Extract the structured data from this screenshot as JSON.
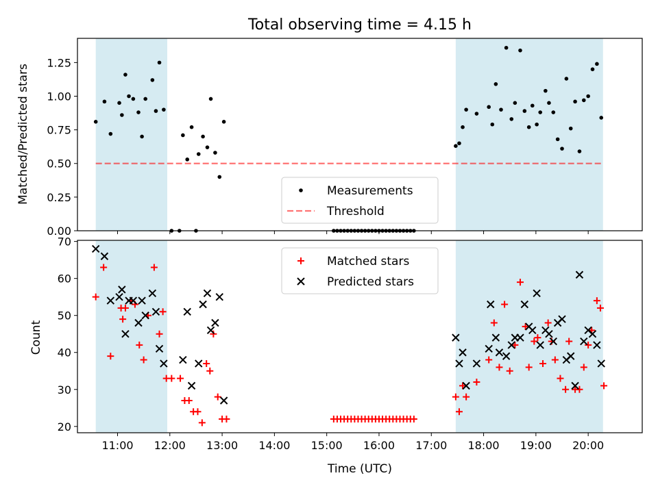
{
  "title": "Total observing time = 4.15 h",
  "colors": {
    "shade": "#add8e6",
    "threshold": "#ff0000",
    "matched": "#ff0000",
    "predicted": "#000000",
    "measurement": "#000000"
  },
  "chart_data": [
    {
      "type": "scatter",
      "ylabel": "Matched/Predicted stars",
      "ylim": [
        0,
        1.43
      ],
      "xlim": [
        "10:14",
        "21:02"
      ],
      "x_ticks": [
        "11:00",
        "12:00",
        "13:00",
        "14:00",
        "15:00",
        "16:00",
        "17:00",
        "18:00",
        "19:00",
        "20:00"
      ],
      "y_ticks": [
        "0.00",
        "0.25",
        "0.50",
        "0.75",
        "1.00",
        "1.25"
      ],
      "threshold": 0.5,
      "shaded_intervals": [
        [
          "10:35",
          "11:57"
        ],
        [
          "17:28",
          "20:17"
        ]
      ],
      "legend": [
        "Measurements",
        "Threshold"
      ],
      "legend_position": "lower center",
      "series": [
        {
          "name": "Measurements",
          "points": [
            [
              "10:35",
              0.81
            ],
            [
              "10:45",
              0.96
            ],
            [
              "10:52",
              0.72
            ],
            [
              "11:02",
              0.95
            ],
            [
              "11:05",
              0.86
            ],
            [
              "11:09",
              1.16
            ],
            [
              "11:13",
              1.0
            ],
            [
              "11:18",
              0.98
            ],
            [
              "11:24",
              0.88
            ],
            [
              "11:28",
              0.7
            ],
            [
              "11:32",
              0.98
            ],
            [
              "11:40",
              1.12
            ],
            [
              "11:44",
              0.89
            ],
            [
              "11:48",
              1.25
            ],
            [
              "11:53",
              0.9
            ],
            [
              "12:02",
              0.0
            ],
            [
              "12:11",
              0.0
            ],
            [
              "12:15",
              0.71
            ],
            [
              "12:20",
              0.53
            ],
            [
              "12:25",
              0.77
            ],
            [
              "12:30",
              0.0
            ],
            [
              "12:33",
              0.57
            ],
            [
              "12:38",
              0.7
            ],
            [
              "12:43",
              0.62
            ],
            [
              "12:47",
              0.98
            ],
            [
              "12:52",
              0.58
            ],
            [
              "12:57",
              0.4
            ],
            [
              "13:02",
              0.81
            ],
            [
              "15:08",
              0.0
            ],
            [
              "15:12",
              0.0
            ],
            [
              "15:16",
              0.0
            ],
            [
              "15:20",
              0.0
            ],
            [
              "15:24",
              0.0
            ],
            [
              "15:28",
              0.0
            ],
            [
              "15:32",
              0.0
            ],
            [
              "15:36",
              0.0
            ],
            [
              "15:40",
              0.0
            ],
            [
              "15:44",
              0.0
            ],
            [
              "15:48",
              0.0
            ],
            [
              "15:52",
              0.0
            ],
            [
              "15:56",
              0.0
            ],
            [
              "16:00",
              0.0
            ],
            [
              "16:04",
              0.0
            ],
            [
              "16:08",
              0.0
            ],
            [
              "16:12",
              0.0
            ],
            [
              "16:16",
              0.0
            ],
            [
              "16:20",
              0.0
            ],
            [
              "16:24",
              0.0
            ],
            [
              "16:28",
              0.0
            ],
            [
              "16:32",
              0.0
            ],
            [
              "16:36",
              0.0
            ],
            [
              "16:40",
              0.0
            ],
            [
              "17:28",
              0.63
            ],
            [
              "17:32",
              0.65
            ],
            [
              "17:36",
              0.77
            ],
            [
              "17:40",
              0.9
            ],
            [
              "17:52",
              0.87
            ],
            [
              "18:06",
              0.92
            ],
            [
              "18:10",
              0.79
            ],
            [
              "18:14",
              1.09
            ],
            [
              "18:20",
              0.9
            ],
            [
              "18:26",
              1.36
            ],
            [
              "18:32",
              0.83
            ],
            [
              "18:36",
              0.95
            ],
            [
              "18:42",
              1.34
            ],
            [
              "18:47",
              0.89
            ],
            [
              "18:52",
              0.77
            ],
            [
              "18:56",
              0.93
            ],
            [
              "19:01",
              0.79
            ],
            [
              "19:05",
              0.88
            ],
            [
              "19:11",
              1.04
            ],
            [
              "19:15",
              0.95
            ],
            [
              "19:20",
              0.88
            ],
            [
              "19:25",
              0.68
            ],
            [
              "19:30",
              0.61
            ],
            [
              "19:35",
              1.13
            ],
            [
              "19:40",
              0.76
            ],
            [
              "19:45",
              0.96
            ],
            [
              "19:50",
              0.59
            ],
            [
              "19:55",
              0.97
            ],
            [
              "20:00",
              1.0
            ],
            [
              "20:05",
              1.2
            ],
            [
              "20:10",
              1.24
            ],
            [
              "20:15",
              0.84
            ]
          ]
        },
        {
          "name": "Threshold",
          "value": 0.5
        }
      ]
    },
    {
      "type": "scatter",
      "xlabel": "Time (UTC)",
      "ylabel": "Count",
      "ylim": [
        18.3,
        70.3
      ],
      "xlim": [
        "10:14",
        "21:02"
      ],
      "x_ticks": [
        "11:00",
        "12:00",
        "13:00",
        "14:00",
        "15:00",
        "16:00",
        "17:00",
        "18:00",
        "19:00",
        "20:00"
      ],
      "y_ticks": [
        "20",
        "30",
        "40",
        "50",
        "60",
        "70"
      ],
      "shaded_intervals": [
        [
          "10:35",
          "11:57"
        ],
        [
          "17:28",
          "20:17"
        ]
      ],
      "legend": [
        "Matched stars",
        "Predicted stars"
      ],
      "legend_position": "upper center",
      "series": [
        {
          "name": "Matched stars",
          "points": [
            [
              "10:35",
              55
            ],
            [
              "10:44",
              63
            ],
            [
              "10:52",
              39
            ],
            [
              "11:04",
              52
            ],
            [
              "11:06",
              49
            ],
            [
              "11:09",
              52
            ],
            [
              "11:15",
              54
            ],
            [
              "11:20",
              53
            ],
            [
              "11:25",
              42
            ],
            [
              "11:30",
              38
            ],
            [
              "11:35",
              50
            ],
            [
              "11:42",
              63
            ],
            [
              "11:48",
              45
            ],
            [
              "11:52",
              51
            ],
            [
              "11:56",
              33
            ],
            [
              "12:02",
              33
            ],
            [
              "12:12",
              33
            ],
            [
              "12:17",
              27
            ],
            [
              "12:22",
              27
            ],
            [
              "12:27",
              24
            ],
            [
              "12:32",
              24
            ],
            [
              "12:37",
              21
            ],
            [
              "12:42",
              37
            ],
            [
              "12:46",
              35
            ],
            [
              "12:50",
              45
            ],
            [
              "12:55",
              28
            ],
            [
              "13:00",
              22
            ],
            [
              "13:05",
              22
            ],
            [
              "15:08",
              22
            ],
            [
              "15:12",
              22
            ],
            [
              "15:16",
              22
            ],
            [
              "15:20",
              22
            ],
            [
              "15:24",
              22
            ],
            [
              "15:28",
              22
            ],
            [
              "15:32",
              22
            ],
            [
              "15:36",
              22
            ],
            [
              "15:40",
              22
            ],
            [
              "15:44",
              22
            ],
            [
              "15:48",
              22
            ],
            [
              "15:52",
              22
            ],
            [
              "15:56",
              22
            ],
            [
              "16:00",
              22
            ],
            [
              "16:04",
              22
            ],
            [
              "16:08",
              22
            ],
            [
              "16:12",
              22
            ],
            [
              "16:16",
              22
            ],
            [
              "16:20",
              22
            ],
            [
              "16:24",
              22
            ],
            [
              "16:28",
              22
            ],
            [
              "16:32",
              22
            ],
            [
              "16:36",
              22
            ],
            [
              "16:40",
              22
            ],
            [
              "17:28",
              28
            ],
            [
              "17:32",
              24
            ],
            [
              "17:36",
              31
            ],
            [
              "17:40",
              28
            ],
            [
              "17:52",
              32
            ],
            [
              "18:06",
              38
            ],
            [
              "18:12",
              48
            ],
            [
              "18:18",
              36
            ],
            [
              "18:24",
              53
            ],
            [
              "18:30",
              35
            ],
            [
              "18:36",
              42
            ],
            [
              "18:42",
              59
            ],
            [
              "18:48",
              47
            ],
            [
              "18:52",
              36
            ],
            [
              "18:58",
              43
            ],
            [
              "19:02",
              44
            ],
            [
              "19:08",
              37
            ],
            [
              "19:14",
              48
            ],
            [
              "19:18",
              43
            ],
            [
              "19:22",
              38
            ],
            [
              "19:28",
              33
            ],
            [
              "19:34",
              30
            ],
            [
              "19:38",
              43
            ],
            [
              "19:45",
              30
            ],
            [
              "19:50",
              30
            ],
            [
              "19:55",
              36
            ],
            [
              "20:00",
              42
            ],
            [
              "20:04",
              46
            ],
            [
              "20:10",
              54
            ],
            [
              "20:14",
              52
            ],
            [
              "20:18",
              31
            ]
          ]
        },
        {
          "name": "Predicted stars",
          "points": [
            [
              "10:35",
              68
            ],
            [
              "10:45",
              66
            ],
            [
              "10:52",
              54
            ],
            [
              "11:02",
              55
            ],
            [
              "11:05",
              57
            ],
            [
              "11:09",
              45
            ],
            [
              "11:13",
              54
            ],
            [
              "11:18",
              54
            ],
            [
              "11:24",
              48
            ],
            [
              "11:28",
              54
            ],
            [
              "11:32",
              50
            ],
            [
              "11:40",
              56
            ],
            [
              "11:44",
              51
            ],
            [
              "11:48",
              41
            ],
            [
              "11:53",
              37
            ],
            [
              "12:15",
              38
            ],
            [
              "12:20",
              51
            ],
            [
              "12:25",
              31
            ],
            [
              "12:33",
              37
            ],
            [
              "12:38",
              53
            ],
            [
              "12:43",
              56
            ],
            [
              "12:47",
              46
            ],
            [
              "12:52",
              48
            ],
            [
              "12:57",
              55
            ],
            [
              "13:02",
              27
            ],
            [
              "17:28",
              44
            ],
            [
              "17:32",
              37
            ],
            [
              "17:36",
              40
            ],
            [
              "17:40",
              31
            ],
            [
              "17:52",
              37
            ],
            [
              "18:06",
              41
            ],
            [
              "18:08",
              53
            ],
            [
              "18:14",
              44
            ],
            [
              "18:18",
              40
            ],
            [
              "18:26",
              39
            ],
            [
              "18:32",
              42
            ],
            [
              "18:36",
              44
            ],
            [
              "18:42",
              44
            ],
            [
              "18:47",
              53
            ],
            [
              "18:52",
              47
            ],
            [
              "18:56",
              46
            ],
            [
              "19:01",
              56
            ],
            [
              "19:05",
              42
            ],
            [
              "19:11",
              46
            ],
            [
              "19:15",
              45
            ],
            [
              "19:20",
              43
            ],
            [
              "19:25",
              48
            ],
            [
              "19:30",
              49
            ],
            [
              "19:35",
              38
            ],
            [
              "19:40",
              39
            ],
            [
              "19:45",
              31
            ],
            [
              "19:50",
              61
            ],
            [
              "19:55",
              43
            ],
            [
              "20:00",
              46
            ],
            [
              "20:05",
              45
            ],
            [
              "20:10",
              42
            ],
            [
              "20:15",
              37
            ]
          ]
        }
      ]
    }
  ]
}
